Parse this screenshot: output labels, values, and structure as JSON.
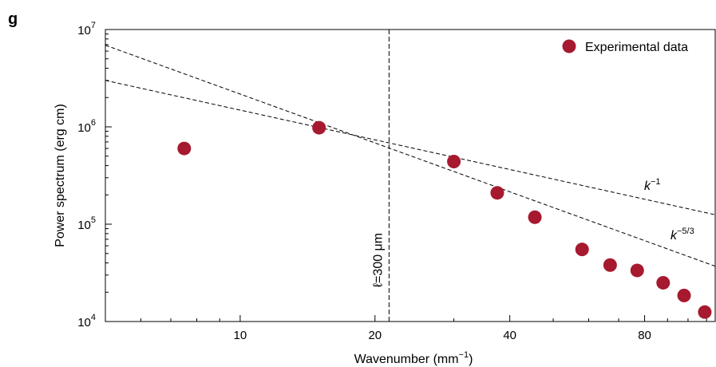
{
  "panel_label": "g",
  "chart_data": {
    "type": "scatter",
    "xlabel_main": "Wavenumber (mm",
    "xlabel_exp": "−1",
    "xlabel_close": ")",
    "ylabel": "Power spectrum (erg cm)",
    "x_scale": "log",
    "y_scale": "log",
    "xlim": [
      5,
      115
    ],
    "ylim": [
      10000,
      10000000
    ],
    "x_ticks": [
      {
        "value": 10,
        "label": "10"
      },
      {
        "value": 20,
        "label": "20"
      },
      {
        "value": 40,
        "label": "40"
      },
      {
        "value": 80,
        "label": "80"
      }
    ],
    "y_ticks": [
      {
        "value": 10000,
        "base": "10",
        "exp": "4"
      },
      {
        "value": 100000,
        "base": "10",
        "exp": "5"
      },
      {
        "value": 1000000,
        "base": "10",
        "exp": "6"
      },
      {
        "value": 10000000,
        "base": "10",
        "exp": "7"
      }
    ],
    "legend": {
      "placement": "top-right",
      "label": "Experimental data",
      "color": "#a6192e"
    },
    "series": [
      {
        "name": "Experimental data",
        "color": "#a6192e",
        "points": [
          {
            "x": 7.5,
            "y": 600000
          },
          {
            "x": 15.0,
            "y": 980000
          },
          {
            "x": 30.0,
            "y": 440000
          },
          {
            "x": 37.5,
            "y": 210000
          },
          {
            "x": 45.5,
            "y": 118000
          },
          {
            "x": 58.0,
            "y": 55000
          },
          {
            "x": 67.0,
            "y": 38000
          },
          {
            "x": 77.0,
            "y": 33500
          },
          {
            "x": 88.0,
            "y": 25000
          },
          {
            "x": 98.0,
            "y": 18500
          },
          {
            "x": 109.0,
            "y": 12500
          }
        ]
      }
    ],
    "reference_lines": [
      {
        "label_base": "k",
        "label_exp": "−1",
        "x": [
          5,
          115
        ],
        "y": [
          3000000,
          125000
        ]
      },
      {
        "label_base": "k",
        "label_exp": "−5/3",
        "x": [
          5,
          115
        ],
        "y": [
          6900000,
          37000
        ]
      }
    ],
    "vertical_marker": {
      "x": 21.5,
      "label": "ℓ=300 μm"
    }
  }
}
